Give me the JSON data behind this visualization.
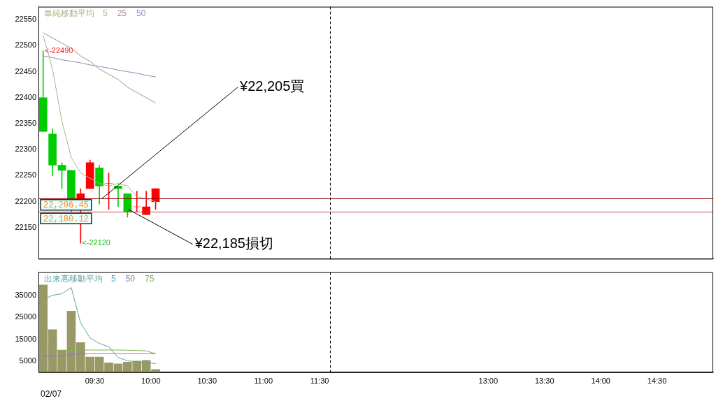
{
  "chart_data": [
    {
      "type": "candlestick",
      "legend_title": "単純移動平均",
      "legend": "top left",
      "x": [
        9.0417,
        9.125,
        9.2083,
        9.2917,
        9.375,
        9.4583,
        9.5417,
        9.625,
        9.7083,
        9.7917,
        9.875,
        9.9583,
        10.0417
      ],
      "ohlc": [
        [
          22400,
          22490,
          22335,
          22335
        ],
        [
          22330,
          22340,
          22250,
          22270
        ],
        [
          22270,
          22275,
          22225,
          22260
        ],
        [
          22260,
          22260,
          22180,
          22205
        ],
        [
          22205,
          22225,
          22120,
          22215
        ],
        [
          22225,
          22280,
          22225,
          22275
        ],
        [
          22265,
          22270,
          22195,
          22230
        ],
        [
          22235,
          22255,
          22185,
          22235
        ],
        [
          22230,
          22230,
          22190,
          22225
        ],
        [
          22215,
          22215,
          22170,
          22180
        ],
        [
          22190,
          22220,
          22180,
          22190
        ],
        [
          22175,
          22220,
          22175,
          22190
        ],
        [
          22200,
          22225,
          22185,
          22225
        ]
      ],
      "colors": [
        "#00cc00",
        "#00cc00",
        "#00cc00",
        "#00cc00",
        "#ff0000",
        "#ff0000",
        "#00cc00",
        "#ff0000",
        "#00cc00",
        "#00cc00",
        "#ff0000",
        "#ff0000",
        "#ff0000"
      ],
      "series": [
        {
          "name": "5",
          "type": "line",
          "color": "#b0b08a",
          "values": [
            22520,
            22455,
            22355,
            22285,
            22255,
            22245,
            22235,
            22230,
            22235,
            22230,
            22210,
            22205,
            22200
          ]
        },
        {
          "name": "25",
          "type": "line",
          "color": "#b08a8a",
          "values": [
            22525,
            22515,
            22505,
            22495,
            22480,
            22470,
            22455,
            22445,
            22435,
            22420,
            22410,
            22400,
            22390
          ]
        },
        {
          "name": "50",
          "type": "line",
          "color": "#8a8ab8",
          "values": [
            22480,
            22477,
            22473,
            22470,
            22467,
            22463,
            22460,
            22457,
            22453,
            22450,
            22447,
            22443,
            22440
          ]
        }
      ],
      "xlim": [
        9,
        15
      ],
      "ylim": [
        22090,
        22575
      ],
      "yticks": [
        22150,
        22200,
        22250,
        22300,
        22350,
        22400,
        22450,
        22500,
        22550
      ],
      "tick_labels": "y",
      "ref_lines": [
        {
          "axis": "y",
          "value": 22206.45,
          "label": "22,206.45",
          "color": "#900000"
        },
        {
          "axis": "y",
          "value": 22180.12,
          "label": "22,180.12",
          "color": "#c04040"
        },
        {
          "axis": "x",
          "value": 11.59,
          "line_style": "dashed",
          "color": "#000000"
        }
      ],
      "annotations": [
        {
          "text": "<-22490",
          "x": 9.0417,
          "y": 22490
        },
        {
          "text": "<-22120",
          "x": 9.375,
          "y": 22120
        },
        {
          "text": "¥22,205買",
          "x": 9.56,
          "y": 22205
        },
        {
          "text": "¥22,185損切",
          "x": 9.8,
          "y": 22185
        }
      ]
    },
    {
      "type": "bar",
      "legend_title": "出来高移動平均",
      "legend": "top left",
      "color": "#999966",
      "x": [
        9.0417,
        9.125,
        9.2083,
        9.2917,
        9.375,
        9.4583,
        9.5417,
        9.625,
        9.7083,
        9.7917,
        9.875,
        9.9583,
        10.0417
      ],
      "values": [
        39700,
        19400,
        10100,
        27800,
        13500,
        6900,
        6900,
        4300,
        3800,
        4600,
        5100,
        5400,
        1300
      ],
      "series": [
        {
          "name": "5",
          "type": "line",
          "color": "#5fa0a0",
          "values": [
            33000,
            35000,
            35700,
            38500,
            22400,
            15600,
            13100,
            11600,
            6700,
            5200,
            4700,
            4400,
            3900
          ]
        },
        {
          "name": "50",
          "type": "line",
          "color": "#8080c0",
          "values": [
            7200,
            7300,
            7500,
            8000,
            8300,
            8400,
            8400,
            8400,
            8400,
            8400,
            8400,
            8400,
            8400
          ]
        },
        {
          "name": "75",
          "type": "line",
          "color": "#80b050",
          "values": [
            9400,
            9600,
            9800,
            10000,
            10100,
            10100,
            10100,
            10100,
            10100,
            10000,
            9900,
            9700,
            8400
          ]
        }
      ],
      "xlim": [
        9,
        15
      ],
      "ylim": [
        0,
        45500
      ],
      "yticks": [
        5000,
        15000,
        25000,
        35000
      ],
      "xticks": [
        {
          "value": 9.5,
          "label": "09:30"
        },
        {
          "value": 10,
          "label": "10:00"
        },
        {
          "value": 10.5,
          "label": "10:30"
        },
        {
          "value": 11,
          "label": "11:00"
        },
        {
          "value": 11.5,
          "label": "11:30"
        },
        {
          "value": 13,
          "label": "13:00"
        },
        {
          "value": 13.5,
          "label": "13:30"
        },
        {
          "value": 14,
          "label": "14:00"
        },
        {
          "value": 14.5,
          "label": "14:30"
        },
        {
          "value": 15,
          "label": null
        }
      ],
      "ref_lines": [
        {
          "axis": "x",
          "value": 11.59,
          "line_style": "dashed",
          "color": "#000000"
        }
      ],
      "annotations": [
        "02/07"
      ]
    }
  ]
}
